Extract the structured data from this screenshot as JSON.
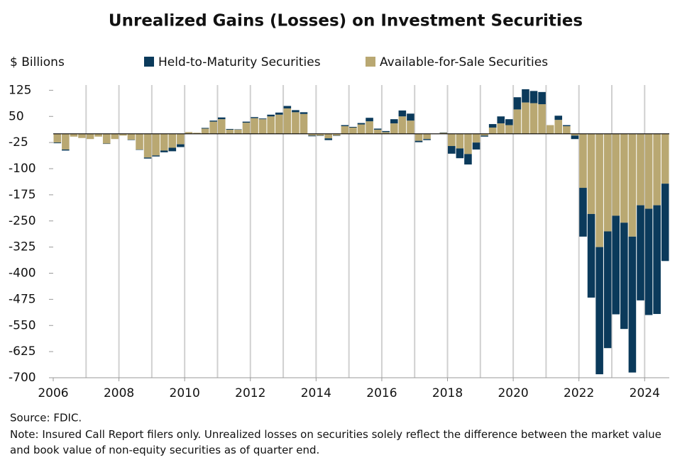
{
  "chart_data": {
    "type": "stacked_bar",
    "title": "Unrealized Gains (Losses) on Investment Securities",
    "y_label": "$ Billions",
    "source": "Source: FDIC.",
    "note": "Note: Insured Call Report filers only. Unrealized losses on securities solely reflect the difference between the market value and book value of non-equity securities as of quarter end.",
    "x": [
      2006,
      2006.25,
      2006.5,
      2006.75,
      2007,
      2007.25,
      2007.5,
      2007.75,
      2008,
      2008.25,
      2008.5,
      2008.75,
      2009,
      2009.25,
      2009.5,
      2009.75,
      2010,
      2010.25,
      2010.5,
      2010.75,
      2011,
      2011.25,
      2011.5,
      2011.75,
      2012,
      2012.25,
      2012.5,
      2012.75,
      2013,
      2013.25,
      2013.5,
      2013.75,
      2014,
      2014.25,
      2014.5,
      2014.75,
      2015,
      2015.25,
      2015.5,
      2015.75,
      2016,
      2016.25,
      2016.5,
      2016.75,
      2017,
      2017.25,
      2017.5,
      2017.75,
      2018,
      2018.25,
      2018.5,
      2018.75,
      2019,
      2019.25,
      2019.5,
      2019.75,
      2020,
      2020.25,
      2020.5,
      2020.75,
      2021,
      2021.25,
      2021.5,
      2021.75,
      2022,
      2022.25,
      2022.5,
      2022.75,
      2023,
      2023.25,
      2023.5,
      2023.75,
      2024,
      2024.25,
      2024.5
    ],
    "series": [
      {
        "name": "Held-to-Maturity Securities",
        "color": "#0b3a5b",
        "values": [
          -2,
          -3,
          0,
          0,
          0,
          0,
          -1,
          0,
          0,
          -1,
          -1,
          -3,
          -3,
          -5,
          -10,
          -8,
          0,
          0,
          2,
          3,
          5,
          2,
          1,
          3,
          3,
          2,
          5,
          6,
          7,
          6,
          5,
          -2,
          -1,
          -5,
          -1,
          3,
          2,
          4,
          10,
          3,
          3,
          12,
          17,
          20,
          -4,
          -3,
          0,
          1,
          -22,
          -28,
          -30,
          -20,
          -3,
          10,
          20,
          17,
          35,
          38,
          35,
          35,
          0,
          12,
          3,
          -10,
          -140,
          -240,
          -365,
          -335,
          -283,
          -305,
          -390,
          -273,
          -305,
          -312,
          -222
        ]
      },
      {
        "name": "Available-for-Sale Securities",
        "color": "#b9a872",
        "values": [
          -25,
          -45,
          -8,
          -12,
          -15,
          -8,
          -28,
          -15,
          -5,
          -17,
          -45,
          -68,
          -62,
          -48,
          -40,
          -30,
          5,
          3,
          15,
          35,
          42,
          12,
          12,
          32,
          45,
          42,
          50,
          55,
          73,
          62,
          57,
          -5,
          -5,
          -13,
          -5,
          22,
          18,
          27,
          36,
          12,
          5,
          30,
          50,
          38,
          -20,
          -15,
          -1,
          3,
          -35,
          -42,
          -58,
          -25,
          -5,
          18,
          30,
          25,
          70,
          90,
          88,
          85,
          25,
          40,
          22,
          -5,
          -155,
          -230,
          -325,
          -280,
          -235,
          -255,
          -295,
          -205,
          -215,
          -205,
          -143
        ]
      }
    ],
    "bar_width_years": 0.25,
    "xlim": [
      2006,
      2024.75
    ],
    "xticks": [
      2006,
      2008,
      2010,
      2012,
      2014,
      2016,
      2018,
      2020,
      2022,
      2024
    ],
    "xgrid": [
      2007,
      2008,
      2009,
      2010,
      2011,
      2012,
      2013,
      2014,
      2015,
      2016,
      2017,
      2018,
      2019,
      2020,
      2021,
      2022,
      2023,
      2024
    ],
    "ylim": [
      -700,
      140
    ],
    "yticks": [
      125,
      50,
      -25,
      -100,
      -175,
      -250,
      -325,
      -400,
      -475,
      -550,
      -625,
      -700
    ]
  }
}
